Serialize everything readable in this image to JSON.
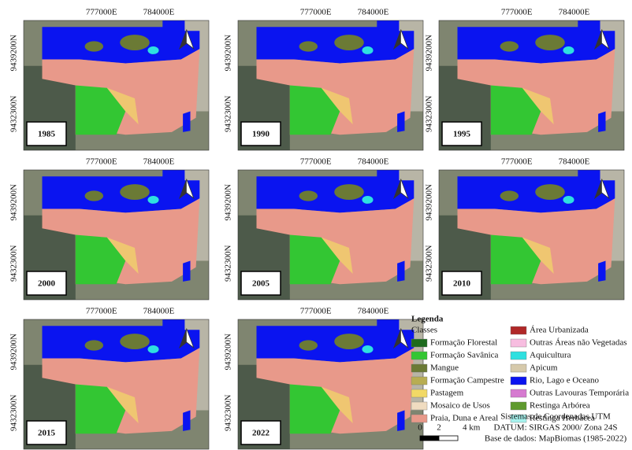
{
  "map_grid": {
    "x_labels": [
      "777000E",
      "784000E"
    ],
    "y_labels": [
      "9439200N",
      "9432300N"
    ]
  },
  "panels": [
    "1985",
    "1990",
    "1995",
    "2000",
    "2005",
    "2010",
    "2015",
    "2022"
  ],
  "legend": {
    "title": "Legenda",
    "subtitle": "Classes",
    "items": [
      {
        "name": "Formação Florestal",
        "color": "#1e6b1e"
      },
      {
        "name": "Formação Savânica",
        "color": "#33c633"
      },
      {
        "name": "Mangue",
        "color": "#6b7a35"
      },
      {
        "name": "Formação Campestre",
        "color": "#b8ad52"
      },
      {
        "name": "Pastagem",
        "color": "#f2d966"
      },
      {
        "name": "Mosaico de Usos",
        "color": "#f0dcc0"
      },
      {
        "name": "Praia, Duna e Areal",
        "color": "#e8998a"
      },
      {
        "name": "Área Urbanizada",
        "color": "#b02828"
      },
      {
        "name": "Outras Áreas não Vegetadas",
        "color": "#f7bde0"
      },
      {
        "name": "Aquicultura",
        "color": "#2ee0e0"
      },
      {
        "name": "Apicum",
        "color": "#d6c9ab"
      },
      {
        "name": "Rio, Lago e Oceano",
        "color": "#0a14f0"
      },
      {
        "name": "Outras Lavouras Temporária",
        "color": "#d67ad0"
      },
      {
        "name": "Restinga Arbórea",
        "color": "#5f9a2e"
      },
      {
        "name": "Restinga Herbácea",
        "color": "#a6f2ee"
      }
    ]
  },
  "scale": {
    "labels": [
      "0",
      "2",
      "4 km"
    ]
  },
  "credits": [
    "Sistemas de Coordenadas UTM",
    "DATUM: SIRGAS 2000/ Zona 24S",
    "Base de dados: MapBiomas (1985-2022)"
  ]
}
